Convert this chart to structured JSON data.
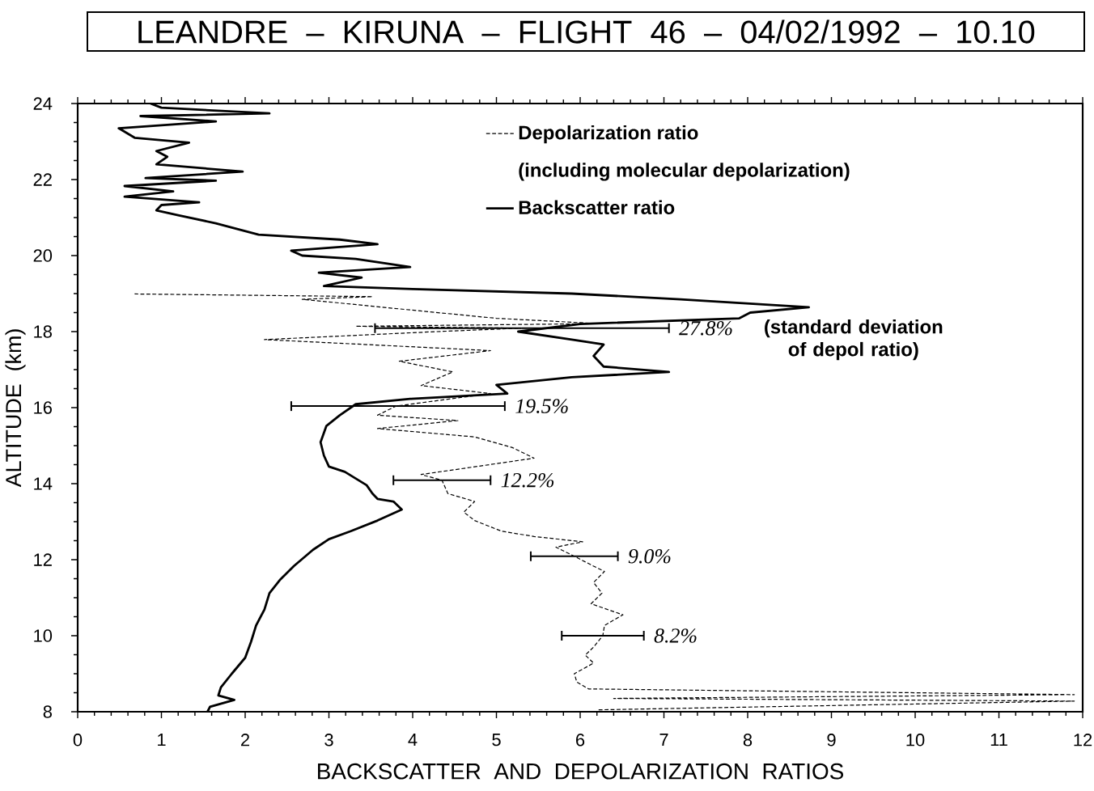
{
  "chart_data": {
    "type": "line",
    "title": "LEANDRE – KIRUNA – FLIGHT 46 – 04/02/1992 – 10.10",
    "xlabel": "BACKSCATTER AND DEPOLARIZATION RATIOS",
    "ylabel": "ALTITUDE (km)",
    "xlim": [
      0,
      12
    ],
    "ylim": [
      8,
      24
    ],
    "xticks": [
      0,
      1,
      2,
      3,
      4,
      5,
      6,
      7,
      8,
      9,
      10,
      11,
      12
    ],
    "yticks": [
      8,
      10,
      12,
      14,
      16,
      18,
      20,
      22,
      24
    ],
    "legend": "top right",
    "series": [
      {
        "name": "Depolarization ratio",
        "color": "#000000",
        "line_style": "dashed",
        "x": [
          6.22,
          11.9,
          6.4,
          11.9,
          6.1,
          5.96,
          5.93,
          6.16,
          6.06,
          6.16,
          6.27,
          6.29,
          6.51,
          6.13,
          6.26,
          6.16,
          6.29,
          6.16,
          5.93,
          5.71,
          6.03,
          5.45,
          5.06,
          4.74,
          4.61,
          4.74,
          4.42,
          4.35,
          4.1,
          5.45,
          5.19,
          4.74,
          3.58,
          4.54,
          3.58,
          3.8,
          4.93,
          4.1,
          4.48,
          3.84,
          4.93,
          2.23,
          4.29,
          5.3,
          3.32,
          6.22,
          5.0,
          3.97,
          2.68,
          3.52,
          0.68
        ],
        "values": [
          8.05,
          8.28,
          8.35,
          8.45,
          8.6,
          8.78,
          9.0,
          9.28,
          9.49,
          9.7,
          10.0,
          10.27,
          10.55,
          10.84,
          11.12,
          11.4,
          11.69,
          11.83,
          12.09,
          12.33,
          12.47,
          12.61,
          12.75,
          13.03,
          13.25,
          13.53,
          13.74,
          14.09,
          14.24,
          14.67,
          14.95,
          15.23,
          15.45,
          15.66,
          15.8,
          16.04,
          16.37,
          16.58,
          16.94,
          17.22,
          17.5,
          17.79,
          18.0,
          18.09,
          18.14,
          18.21,
          18.35,
          18.57,
          18.85,
          18.92,
          18.99
        ],
        "xerrors": [
          null,
          null,
          null,
          null,
          null,
          null,
          null,
          null,
          null,
          null,
          [
            5.78,
            6.76
          ],
          null,
          null,
          null,
          null,
          null,
          null,
          null,
          [
            5.41,
            6.45
          ],
          null,
          null,
          null,
          null,
          null,
          null,
          null,
          null,
          [
            3.77,
            4.93
          ],
          null,
          null,
          null,
          null,
          null,
          null,
          null,
          [
            2.55,
            5.1
          ],
          null,
          null,
          null,
          null,
          null,
          null,
          null,
          [
            3.55,
            7.06
          ],
          null,
          null,
          null,
          null,
          null,
          null,
          null
        ]
      },
      {
        "name": "Backscatter ratio",
        "color": "#000000",
        "line_style": "solid",
        "x": [
          1.55,
          1.58,
          1.87,
          1.68,
          1.71,
          1.84,
          2.0,
          2.07,
          2.13,
          2.23,
          2.29,
          2.42,
          2.58,
          2.81,
          3.0,
          3.26,
          3.58,
          3.87,
          3.77,
          3.58,
          3.52,
          3.45,
          3.19,
          3.0,
          2.94,
          2.9,
          2.97,
          3.13,
          3.32,
          3.97,
          5.13,
          5.0,
          5.9,
          7.06,
          6.28,
          6.16,
          6.28,
          5.9,
          5.26,
          6.0,
          7.9,
          8.03,
          8.73,
          7.2,
          5.9,
          4.0,
          2.94,
          3.39,
          2.88,
          3.97,
          3.32,
          2.68,
          2.55,
          3.58,
          3.13,
          2.16,
          1.65,
          1.2,
          0.94,
          1.0,
          1.45,
          0.56,
          1.14,
          0.56,
          1.65,
          0.81,
          1.97,
          0.94,
          1.07,
          0.94,
          1.33,
          0.68,
          0.49,
          1.65,
          0.75,
          2.29,
          1.0,
          0.87
        ],
        "values": [
          8.0,
          8.13,
          8.31,
          8.43,
          8.64,
          9.0,
          9.42,
          9.84,
          10.27,
          10.69,
          11.12,
          11.48,
          11.83,
          12.26,
          12.54,
          12.75,
          13.03,
          13.32,
          13.53,
          13.6,
          13.74,
          13.96,
          14.31,
          14.45,
          14.74,
          15.09,
          15.52,
          15.8,
          16.09,
          16.23,
          16.37,
          16.6,
          16.8,
          16.94,
          17.08,
          17.36,
          17.66,
          17.79,
          18.0,
          18.2,
          18.35,
          18.5,
          18.64,
          18.85,
          19.0,
          19.12,
          19.2,
          19.42,
          19.55,
          19.7,
          19.91,
          20.0,
          20.13,
          20.3,
          20.42,
          20.55,
          20.85,
          21.06,
          21.19,
          21.33,
          21.4,
          21.55,
          21.69,
          21.83,
          21.97,
          22.04,
          22.21,
          22.4,
          22.6,
          22.75,
          22.97,
          23.1,
          23.35,
          23.53,
          23.67,
          23.74,
          23.89,
          24.0
        ]
      }
    ],
    "annotations": [
      "(including molecular depolarization)",
      {
        "text": "27.8%",
        "x": 7.06,
        "y": 18.09
      },
      "(standard deviation of depol ratio)",
      {
        "text": "19.5%",
        "x": 5.1,
        "y": 16.04
      },
      {
        "text": "12.2%",
        "x": 4.93,
        "y": 14.09
      },
      {
        "text": "9.0%",
        "x": 6.45,
        "y": 12.09
      },
      {
        "text": "8.2%",
        "x": 6.76,
        "y": 10.0
      }
    ]
  }
}
